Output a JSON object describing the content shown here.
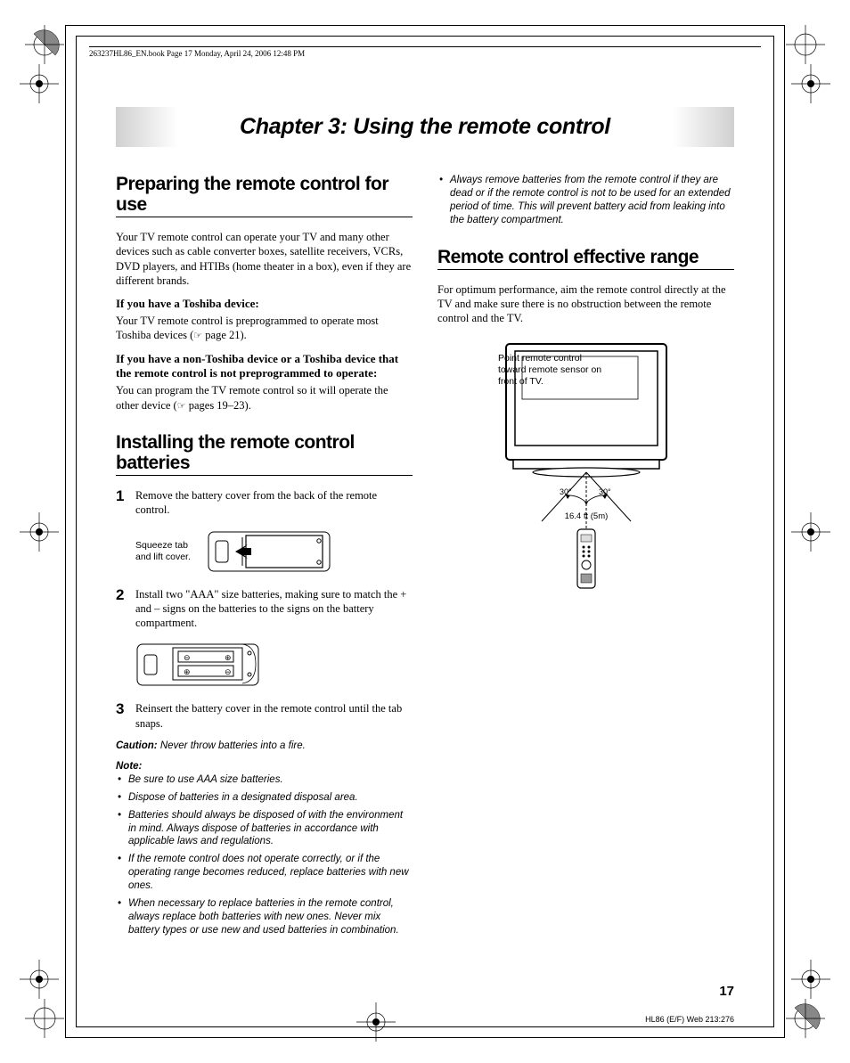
{
  "header": "263237HL86_EN.book  Page 17  Monday, April 24, 2006  12:48 PM",
  "chapter_title": "Chapter 3: Using the remote control",
  "page_number": "17",
  "footer_code": "HL86 (E/F) Web 213:276",
  "left": {
    "section1_title": "Preparing the remote control for use",
    "para1": "Your TV remote control can operate your TV and many other devices such as cable converter boxes, satellite receivers, VCRs, DVD players, and HTIBs (home theater in a box), even if they are different brands.",
    "sub1": "If you have a Toshiba device:",
    "sub1_text_a": "Your TV remote control is preprogrammed to operate most Toshiba devices (",
    "sub1_text_b": " page 21).",
    "sub2": "If you have a non-Toshiba device or a Toshiba device that the remote control is not preprogrammed to operate:",
    "sub2_text_a": "You can program the TV remote control so it will operate the other device (",
    "sub2_text_b": " pages 19–23).",
    "section2_title": "Installing the remote control batteries",
    "step1": "Remove the battery cover from the back of the remote control.",
    "diagram1_label": "Squeeze tab and lift cover.",
    "step2": "Install two \"AAA\" size batteries, making sure to match the + and – signs on the batteries to the signs on the battery compartment.",
    "step3": "Reinsert the battery cover in the remote control until the tab snaps.",
    "caution_label": "Caution:",
    "caution_text": " Never throw batteries into a fire.",
    "note_label": "Note:",
    "notes": [
      "Be sure to use AAA size batteries.",
      "Dispose of batteries in a designated disposal area.",
      "Batteries should always be disposed of with the environment in mind. Always dispose of batteries in accordance with applicable laws and regulations.",
      "If the remote control does not operate correctly, or if the operating range becomes reduced, replace batteries with new ones.",
      "When necessary to replace batteries in the remote control, always replace both batteries with new ones. Never mix battery types or use new and used batteries in combination."
    ]
  },
  "right": {
    "top_bullet": "Always remove batteries from the remote control if they are dead or if the remote control is not to be used for an extended period of time. This will prevent battery acid from leaking into the battery compartment.",
    "section_title": "Remote control effective range",
    "para": "For optimum performance, aim the remote control directly at the TV and make sure there is no obstruction between the remote control and the TV.",
    "tv_label": "Point remote control toward remote sensor on front of TV.",
    "angle_left": "30°",
    "angle_right": "30°",
    "distance": "16.4 ft (5m)"
  }
}
